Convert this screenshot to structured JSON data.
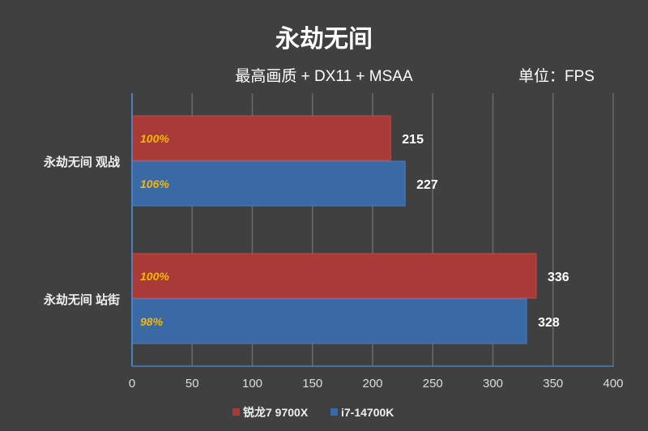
{
  "chart_data": {
    "type": "bar",
    "orientation": "horizontal",
    "title": "永劫无间",
    "subtitle": "最高画质 + DX11 + MSAA",
    "unit_label": "单位：FPS",
    "categories": [
      "永劫无间 观战",
      "永劫无间 站街"
    ],
    "series": [
      {
        "name": "锐龙7 9700X",
        "color": "#a83a38",
        "values": [
          215,
          336
        ],
        "percent_labels": [
          "100%",
          "100%"
        ]
      },
      {
        "name": "i7-14700K",
        "color": "#3a6aa5",
        "values": [
          227,
          328
        ],
        "percent_labels": [
          "106%",
          "98%"
        ]
      }
    ],
    "xlim": [
      0,
      400
    ],
    "xticks": [
      "0",
      "50",
      "100",
      "150",
      "200",
      "250",
      "300",
      "350",
      "400"
    ],
    "grid": true,
    "legend": "bottom",
    "percent_label_color": "#f5b800"
  }
}
